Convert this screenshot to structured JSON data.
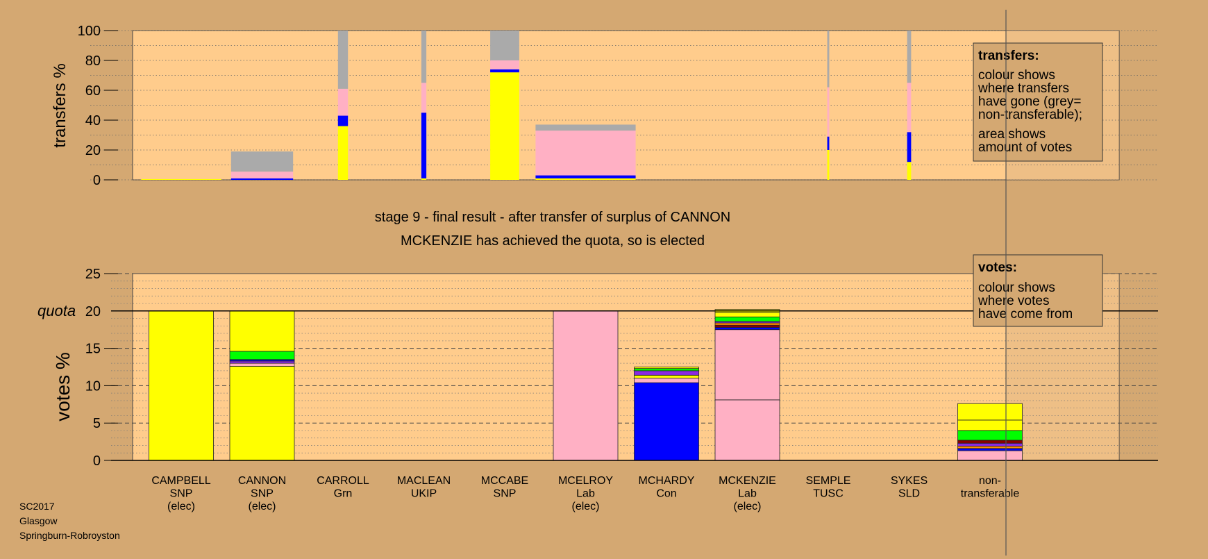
{
  "colors": {
    "background": "#d4a872",
    "plot_area": "#ffcc8c",
    "non_transferable_area": "#deb17f",
    "SNP": "#ffff00",
    "Lab": "#ffb0c4",
    "Con": "#0000ff",
    "Grn": "#00ff00",
    "UKIP": "#8a2be2",
    "TUSC": "#8b0000",
    "SLD": "#ff8c00",
    "non_transferable": "#aaaaaa"
  },
  "stage_text": {
    "line1": "stage 9 - final result - after transfer of surplus of CANNON",
    "line2": "MCKENZIE has achieved the quota, so is elected"
  },
  "legend_transfers": {
    "title": "transfers:",
    "lines1": [
      "colour shows",
      "where transfers",
      "have gone (grey=",
      "non-transferable);"
    ],
    "lines2": [
      "area shows",
      "amount of votes"
    ]
  },
  "legend_votes": {
    "title": "votes:",
    "lines": [
      "colour shows",
      "where votes",
      "have come from"
    ]
  },
  "footer": [
    "SC2017",
    "Glasgow",
    "Springburn-Robroyston"
  ],
  "chart_data": [
    {
      "type": "bar",
      "ylabel": "transfers %",
      "ylim": [
        0,
        100
      ],
      "yticks": [
        0,
        20,
        40,
        60,
        80,
        100
      ],
      "grid": "dotted",
      "categories": [
        "CAMPBELL SNP",
        "CANNON SNP",
        "CARROLL Grn",
        "MACLEAN UKIP",
        "MCCABE SNP",
        "MCELROY Lab",
        "MCHARDY Con",
        "MCKENZIE Lab",
        "SEMPLE TUSC",
        "SYKES SLD"
      ],
      "bars": [
        {
          "candidate": "CAMPBELL",
          "width_share": 0.8,
          "segments": [
            {
              "party": "SNP",
              "value": 0.5
            }
          ]
        },
        {
          "candidate": "CANNON",
          "width_share": 0.62,
          "segments": [
            {
              "party": "Con",
              "value": 1
            },
            {
              "party": "Lab",
              "value": 4.5
            },
            {
              "party": "non_transferable",
              "value": 13.5
            }
          ]
        },
        {
          "candidate": "CARROLL",
          "width_share": 0.1,
          "segments": [
            {
              "party": "SNP",
              "value": 36
            },
            {
              "party": "Con",
              "value": 7
            },
            {
              "party": "Lab",
              "value": 18
            },
            {
              "party": "non_transferable",
              "value": 39
            }
          ]
        },
        {
          "candidate": "MACLEAN",
          "width_share": 0.05,
          "segments": [
            {
              "party": "SNP",
              "value": 1
            },
            {
              "party": "Con",
              "value": 44
            },
            {
              "party": "Lab",
              "value": 20
            },
            {
              "party": "non_transferable",
              "value": 35
            }
          ]
        },
        {
          "candidate": "MCCABE",
          "width_share": 0.29,
          "segments": [
            {
              "party": "SNP",
              "value": 72
            },
            {
              "party": "Con",
              "value": 2
            },
            {
              "party": "Lab",
              "value": 6
            },
            {
              "party": "non_transferable",
              "value": 20
            }
          ]
        },
        {
          "candidate": "MCELROY",
          "width_share": 1.0,
          "segments": [
            {
              "party": "SNP",
              "value": 1
            },
            {
              "party": "Con",
              "value": 2
            },
            {
              "party": "Lab",
              "value": 30
            },
            {
              "party": "non_transferable",
              "value": 4
            }
          ]
        },
        {
          "candidate": "MCHARDY",
          "width_share": 0,
          "segments": []
        },
        {
          "candidate": "MCKENZIE",
          "width_share": 0,
          "segments": []
        },
        {
          "candidate": "SEMPLE",
          "width_share": 0.02,
          "segments": [
            {
              "party": "SNP",
              "value": 20
            },
            {
              "party": "Con",
              "value": 9
            },
            {
              "party": "Lab",
              "value": 33
            },
            {
              "party": "non_transferable",
              "value": 38
            }
          ]
        },
        {
          "candidate": "SYKES",
          "width_share": 0.04,
          "segments": [
            {
              "party": "SNP",
              "value": 12
            },
            {
              "party": "Con",
              "value": 20
            },
            {
              "party": "Lab",
              "value": 33
            },
            {
              "party": "non_transferable",
              "value": 35
            }
          ]
        }
      ]
    },
    {
      "type": "bar",
      "ylabel": "votes %",
      "ylim": [
        0,
        25
      ],
      "yticks": [
        0,
        5,
        10,
        15,
        20,
        25
      ],
      "quota": 20,
      "quota_label": "quota",
      "grid": "dashed",
      "categories": [
        {
          "name": "CAMPBELL",
          "party": "SNP",
          "status": "(elec)"
        },
        {
          "name": "CANNON",
          "party": "SNP",
          "status": "(elec)"
        },
        {
          "name": "CARROLL",
          "party": "Grn",
          "status": ""
        },
        {
          "name": "MACLEAN",
          "party": "UKIP",
          "status": ""
        },
        {
          "name": "MCCABE",
          "party": "SNP",
          "status": ""
        },
        {
          "name": "MCELROY",
          "party": "Lab",
          "status": "(elec)"
        },
        {
          "name": "MCHARDY",
          "party": "Con",
          "status": ""
        },
        {
          "name": "MCKENZIE",
          "party": "Lab",
          "status": "(elec)"
        },
        {
          "name": "SEMPLE",
          "party": "TUSC",
          "status": ""
        },
        {
          "name": "SYKES",
          "party": "SLD",
          "status": ""
        },
        {
          "name": "non-",
          "party": "transferable",
          "status": ""
        }
      ],
      "stacks": [
        [
          {
            "party": "SNP",
            "value": 20
          }
        ],
        [
          {
            "party": "SNP",
            "value": 12.6
          },
          {
            "party": "Lab",
            "value": 0.4
          },
          {
            "party": "UKIP",
            "value": 0.3
          },
          {
            "party": "Con",
            "value": 0.2
          },
          {
            "party": "Grn",
            "value": 1.1
          },
          {
            "party": "SNP",
            "value": 5.4
          }
        ],
        [],
        [],
        [],
        [
          {
            "party": "Lab",
            "value": 20
          }
        ],
        [
          {
            "party": "Con",
            "value": 10.4
          },
          {
            "party": "Lab",
            "value": 0.6
          },
          {
            "party": "SNP",
            "value": 0.4
          },
          {
            "party": "UKIP",
            "value": 0.6
          },
          {
            "party": "Grn",
            "value": 0.3
          },
          {
            "party": "SNP",
            "value": 0.2
          }
        ],
        [
          {
            "party": "Lab",
            "value": 8.1
          },
          {
            "party": "Lab",
            "value": 9.4
          },
          {
            "party": "Con",
            "value": 0.3
          },
          {
            "party": "TUSC",
            "value": 0.3
          },
          {
            "party": "SLD",
            "value": 0.3
          },
          {
            "party": "UKIP",
            "value": 0.2
          },
          {
            "party": "Grn",
            "value": 0.6
          },
          {
            "party": "SNP",
            "value": 0.6
          },
          {
            "party": "SNP",
            "value": 0.4
          }
        ],
        [],
        [],
        [
          {
            "party": "Lab",
            "value": 1.3
          },
          {
            "party": "Con",
            "value": 0.3
          },
          {
            "party": "SLD",
            "value": 0.3
          },
          {
            "party": "UKIP",
            "value": 0.4
          },
          {
            "party": "TUSC",
            "value": 0.4
          },
          {
            "party": "Grn",
            "value": 1.3
          },
          {
            "party": "SNP",
            "value": 1.4
          },
          {
            "party": "SNP",
            "value": 2.2
          }
        ]
      ]
    }
  ]
}
